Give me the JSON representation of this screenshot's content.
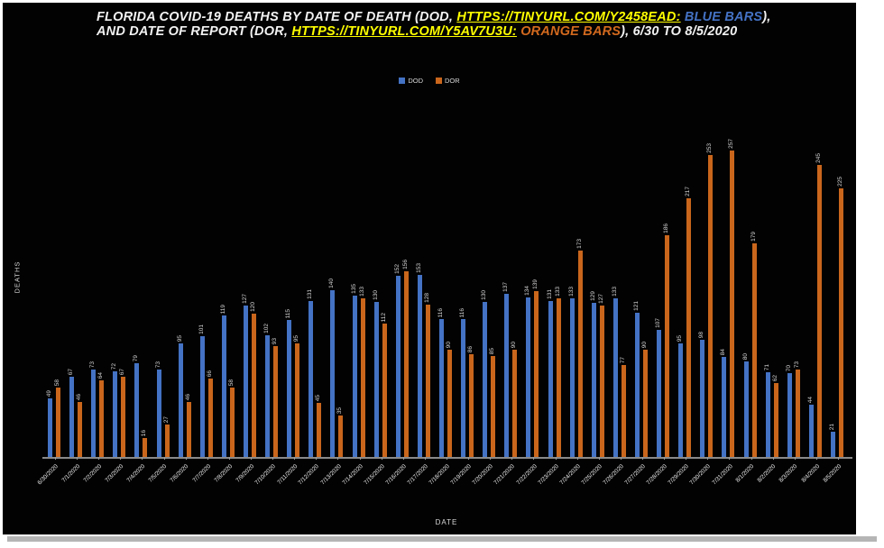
{
  "colors": {
    "background": "#020202",
    "dod_blue": "#4472c4",
    "dor_orange": "#c9661c",
    "link_yellow": "#ffff00",
    "title_text": "#f2f2f2",
    "axis_text": "#d9d9d9"
  },
  "title": {
    "parts": [
      {
        "text": "FLORIDA COVID-19 DEATHS BY DATE OF DEATH (DOD, ",
        "style": "plain"
      },
      {
        "text": "HTTPS://TINYURL.COM/Y2458EAD:",
        "style": "link"
      },
      {
        "text": " BLUE BARS",
        "style": "blue"
      },
      {
        "text": "), AND DATE OF REPORT (DOR, ",
        "style": "plain"
      },
      {
        "text": "HTTPS://TINYURL.COM/Y5AV7U3U:",
        "style": "link"
      },
      {
        "text": " ORANGE BARS",
        "style": "orange"
      },
      {
        "text": "), 6/30 TO 8/5/2020",
        "style": "plain"
      }
    ]
  },
  "legend": {
    "items": [
      {
        "label": "DOD",
        "color": "#4472c4"
      },
      {
        "label": "DOR",
        "color": "#c9661c"
      }
    ]
  },
  "chart_data": {
    "type": "bar",
    "title": "FLORIDA COVID-19 DEATHS BY DATE OF DEATH (DOD: BLUE BARS), AND DATE OF REPORT (DOR: ORANGE BARS), 6/30 TO 8/5/2020",
    "xlabel": "DATE",
    "ylabel": "DEATHS",
    "ylim": [
      0,
      270
    ],
    "grid": false,
    "legend_position": "top-center",
    "bar_value_labels": "rotated-vertical",
    "categories": [
      "6/30/2020",
      "7/1/2020",
      "7/2/2020",
      "7/3/2020",
      "7/4/2020",
      "7/5/2020",
      "7/6/2020",
      "7/7/2020",
      "7/8/2020",
      "7/9/2020",
      "7/10/2020",
      "7/11/2020",
      "7/12/2020",
      "7/13/2020",
      "7/14/2020",
      "7/15/2020",
      "7/16/2020",
      "7/17/2020",
      "7/18/2020",
      "7/19/2020",
      "7/20/2020",
      "7/21/2020",
      "7/22/2020",
      "7/23/2020",
      "7/24/2020",
      "7/25/2020",
      "7/26/2020",
      "7/27/2020",
      "7/28/2020",
      "7/29/2020",
      "7/30/2020",
      "7/31/2020",
      "8/1/2020",
      "8/2/2020",
      "8/3/2020",
      "8/4/2020",
      "8/5/2020"
    ],
    "series": [
      {
        "name": "DOD",
        "color": "#4472c4",
        "values": [
          49,
          67,
          73,
          72,
          79,
          73,
          95,
          101,
          119,
          127,
          102,
          115,
          131,
          140,
          135,
          130,
          152,
          153,
          116,
          116,
          130,
          137,
          134,
          131,
          133,
          129,
          133,
          121,
          107,
          95,
          98,
          84,
          80,
          71,
          70,
          44,
          21
        ]
      },
      {
        "name": "DOR",
        "color": "#c9661c",
        "values": [
          58,
          46,
          64,
          67,
          16,
          27,
          46,
          66,
          58,
          120,
          93,
          95,
          45,
          35,
          133,
          112,
          156,
          128,
          90,
          86,
          85,
          90,
          139,
          133,
          173,
          127,
          77,
          90,
          186,
          217,
          253,
          257,
          179,
          62,
          73,
          245,
          225
        ]
      }
    ]
  }
}
